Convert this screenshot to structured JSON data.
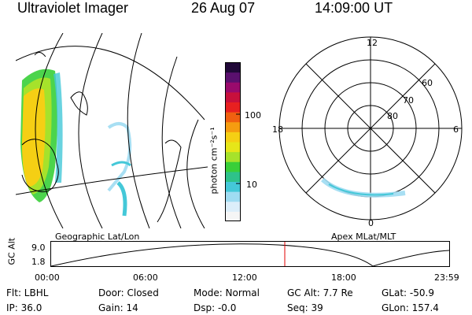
{
  "header": {
    "instrument": "Ultraviolet Imager",
    "date": "26 Aug 07",
    "time": "14:09:00 UT"
  },
  "left_panel": {
    "label": "Geographic Lat/Lon"
  },
  "colorbar": {
    "unit_label": "photon cm⁻²s⁻¹",
    "tick_100": "100",
    "tick_10": "10",
    "colors": [
      "#f5f5f5",
      "#dceefa",
      "#9fdcf2",
      "#44c8d8",
      "#2ec28a",
      "#39cf39",
      "#a6e22b",
      "#e6e619",
      "#f5cf14",
      "#f59c10",
      "#f06010",
      "#e82020",
      "#c8103c",
      "#9a0a6c",
      "#5a106e",
      "#200838"
    ]
  },
  "right_panel": {
    "label": "Apex MLat/MLT",
    "mlt_top": "12",
    "mlt_left": "18",
    "mlt_right": "6",
    "mlt_bottom": "0",
    "lat_60": "60",
    "lat_70": "70",
    "lat_80": "80"
  },
  "altitude_plot": {
    "ylabel": "GC Alt",
    "ytick_top": "9.0",
    "ytick_bottom": "1.8",
    "xticks": [
      "00:00",
      "06:00",
      "12:00",
      "18:00",
      "23:59"
    ],
    "marker_time": "14:09",
    "marker_color": "#e00000"
  },
  "info": {
    "filter": "Flt: LBHL",
    "ip": "IP: 36.0",
    "door": "Door: Closed",
    "gain": "Gain: 14",
    "mode": "Mode: Normal",
    "dsp": "Dsp:    -0.0",
    "gc_alt": "GC Alt: 7.7 Re",
    "seq": "Seq: 39",
    "glat": "GLat: -50.9",
    "glon": "GLon: 157.4"
  }
}
